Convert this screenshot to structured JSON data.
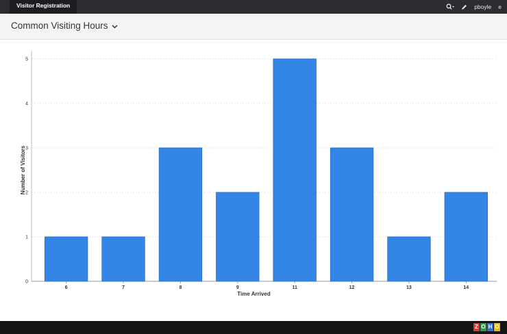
{
  "topbar": {
    "app_tab": "Visitor Registration",
    "user": "pboyle",
    "extra": "e"
  },
  "page": {
    "title": "Common Visiting Hours"
  },
  "footer": {
    "logo_letters": [
      "Z",
      "O",
      "H",
      "O"
    ],
    "logo_colors": [
      "#d63b2f",
      "#2f9b45",
      "#2f6fd6",
      "#e8b91d"
    ]
  },
  "chart_data": {
    "type": "bar",
    "categories": [
      "6",
      "7",
      "8",
      "9",
      "11",
      "12",
      "13",
      "14"
    ],
    "values": [
      1,
      1,
      3,
      2,
      5,
      3,
      1,
      2
    ],
    "xlabel": "Time Arrived",
    "ylabel": "Number of Visitors",
    "ylim": [
      0,
      5
    ],
    "yticks": [
      0,
      1,
      2,
      3,
      4,
      5
    ],
    "grid": true,
    "bar_color": "#3486e6",
    "bar_border": "#2a6fc4"
  }
}
